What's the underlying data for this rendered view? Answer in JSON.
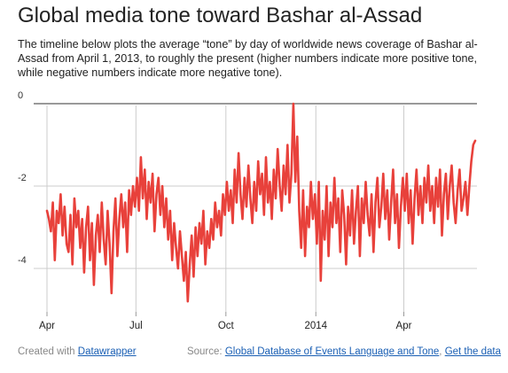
{
  "title": "Global media tone toward Bashar al-Assad",
  "description": "The timeline below plots the average “tone” by day of worldwide news coverage of Bashar al-Assad from April 1, 2013, to roughly the present (higher numbers indicate more positive tone, while negative numbers indicate more negative tone).",
  "footer": {
    "created_prefix": "Created with",
    "created_link": "Datawrapper",
    "source_prefix": "Source:",
    "source_link": "Global Database of Events Language and Tone",
    "separator": ",",
    "data_link": "Get the data"
  },
  "colors": {
    "line": "#e8413b",
    "grid": "#cccccc",
    "zero_line": "#333333"
  },
  "chart_data": {
    "type": "line",
    "title": "Global media tone toward Bashar al-Assad",
    "xlabel": "",
    "ylabel": "",
    "x_start": "2013-04-01",
    "x_end": "2014-06-13",
    "x_ticks": [
      {
        "date": "2013-04-01",
        "label": "Apr"
      },
      {
        "date": "2013-07-01",
        "label": "Jul"
      },
      {
        "date": "2013-10-01",
        "label": "Oct"
      },
      {
        "date": "2014-01-01",
        "label": "2014"
      },
      {
        "date": "2014-04-01",
        "label": "Apr"
      }
    ],
    "y_ticks": [
      0,
      -2,
      -4
    ],
    "ylim": [
      -5,
      0
    ],
    "grid": true,
    "series": [
      {
        "points": [
          [
            "2013-04-01",
            -2.6
          ],
          [
            "2013-04-03",
            -2.8
          ],
          [
            "2013-04-05",
            -3.1
          ],
          [
            "2013-04-07",
            -2.4
          ],
          [
            "2013-04-09",
            -3.8
          ],
          [
            "2013-04-11",
            -2.6
          ],
          [
            "2013-04-13",
            -2.9
          ],
          [
            "2013-04-15",
            -2.2
          ],
          [
            "2013-04-17",
            -3.2
          ],
          [
            "2013-04-19",
            -2.5
          ],
          [
            "2013-04-21",
            -3.4
          ],
          [
            "2013-04-23",
            -3.6
          ],
          [
            "2013-04-25",
            -2.7
          ],
          [
            "2013-04-27",
            -3.9
          ],
          [
            "2013-04-29",
            -2.3
          ],
          [
            "2013-05-01",
            -3.0
          ],
          [
            "2013-05-03",
            -2.6
          ],
          [
            "2013-05-05",
            -3.5
          ],
          [
            "2013-05-07",
            -2.8
          ],
          [
            "2013-05-09",
            -4.1
          ],
          [
            "2013-05-11",
            -3.0
          ],
          [
            "2013-05-13",
            -2.5
          ],
          [
            "2013-05-15",
            -3.8
          ],
          [
            "2013-05-17",
            -2.9
          ],
          [
            "2013-05-19",
            -4.4
          ],
          [
            "2013-05-21",
            -3.2
          ],
          [
            "2013-05-23",
            -2.7
          ],
          [
            "2013-05-25",
            -3.6
          ],
          [
            "2013-05-27",
            -2.4
          ],
          [
            "2013-05-29",
            -3.3
          ],
          [
            "2013-05-31",
            -3.9
          ],
          [
            "2013-06-02",
            -2.6
          ],
          [
            "2013-06-04",
            -3.4
          ],
          [
            "2013-06-06",
            -4.6
          ],
          [
            "2013-06-08",
            -3.1
          ],
          [
            "2013-06-10",
            -2.3
          ],
          [
            "2013-06-12",
            -3.7
          ],
          [
            "2013-06-14",
            -2.8
          ],
          [
            "2013-06-16",
            -2.2
          ],
          [
            "2013-06-18",
            -3.0
          ],
          [
            "2013-06-20",
            -2.4
          ],
          [
            "2013-06-22",
            -3.6
          ],
          [
            "2013-06-24",
            -2.1
          ],
          [
            "2013-06-26",
            -2.7
          ],
          [
            "2013-06-28",
            -2.0
          ],
          [
            "2013-06-30",
            -2.5
          ],
          [
            "2013-07-02",
            -1.8
          ],
          [
            "2013-07-04",
            -2.6
          ],
          [
            "2013-07-06",
            -1.3
          ],
          [
            "2013-07-08",
            -2.3
          ],
          [
            "2013-07-10",
            -1.6
          ],
          [
            "2013-07-12",
            -2.8
          ],
          [
            "2013-07-14",
            -1.9
          ],
          [
            "2013-07-16",
            -2.4
          ],
          [
            "2013-07-18",
            -1.7
          ],
          [
            "2013-07-20",
            -3.1
          ],
          [
            "2013-07-22",
            -2.2
          ],
          [
            "2013-07-24",
            -1.8
          ],
          [
            "2013-07-26",
            -2.7
          ],
          [
            "2013-07-28",
            -2.0
          ],
          [
            "2013-07-30",
            -3.0
          ],
          [
            "2013-08-01",
            -2.3
          ],
          [
            "2013-08-03",
            -3.3
          ],
          [
            "2013-08-05",
            -2.6
          ],
          [
            "2013-08-07",
            -3.8
          ],
          [
            "2013-08-09",
            -2.9
          ],
          [
            "2013-08-11",
            -3.5
          ],
          [
            "2013-08-13",
            -4.0
          ],
          [
            "2013-08-15",
            -3.1
          ],
          [
            "2013-08-17",
            -3.7
          ],
          [
            "2013-08-19",
            -4.3
          ],
          [
            "2013-08-21",
            -3.6
          ],
          [
            "2013-08-23",
            -4.8
          ],
          [
            "2013-08-25",
            -3.9
          ],
          [
            "2013-08-27",
            -3.2
          ],
          [
            "2013-08-29",
            -4.2
          ],
          [
            "2013-08-31",
            -3.0
          ],
          [
            "2013-09-02",
            -3.7
          ],
          [
            "2013-09-04",
            -2.9
          ],
          [
            "2013-09-06",
            -3.4
          ],
          [
            "2013-09-08",
            -2.6
          ],
          [
            "2013-09-10",
            -3.9
          ],
          [
            "2013-09-12",
            -3.1
          ],
          [
            "2013-09-14",
            -3.5
          ],
          [
            "2013-09-16",
            -2.8
          ],
          [
            "2013-09-18",
            -3.3
          ],
          [
            "2013-09-20",
            -2.4
          ],
          [
            "2013-09-22",
            -3.0
          ],
          [
            "2013-09-24",
            -2.6
          ],
          [
            "2013-09-26",
            -3.2
          ],
          [
            "2013-09-28",
            -2.2
          ],
          [
            "2013-09-30",
            -2.7
          ],
          [
            "2013-10-02",
            -1.9
          ],
          [
            "2013-10-04",
            -2.6
          ],
          [
            "2013-10-06",
            -2.1
          ],
          [
            "2013-10-08",
            -2.9
          ],
          [
            "2013-10-10",
            -1.6
          ],
          [
            "2013-10-12",
            -2.4
          ],
          [
            "2013-10-14",
            -1.2
          ],
          [
            "2013-10-16",
            -2.2
          ],
          [
            "2013-10-18",
            -2.8
          ],
          [
            "2013-10-20",
            -1.8
          ],
          [
            "2013-10-22",
            -2.5
          ],
          [
            "2013-10-24",
            -1.5
          ],
          [
            "2013-10-26",
            -2.3
          ],
          [
            "2013-10-28",
            -2.9
          ],
          [
            "2013-10-30",
            -1.9
          ],
          [
            "2013-11-01",
            -2.6
          ],
          [
            "2013-11-03",
            -1.4
          ],
          [
            "2013-11-05",
            -2.2
          ],
          [
            "2013-11-07",
            -1.7
          ],
          [
            "2013-11-09",
            -2.7
          ],
          [
            "2013-11-11",
            -1.3
          ],
          [
            "2013-11-13",
            -2.4
          ],
          [
            "2013-11-15",
            -1.9
          ],
          [
            "2013-11-17",
            -2.8
          ],
          [
            "2013-11-19",
            -1.6
          ],
          [
            "2013-11-21",
            -2.3
          ],
          [
            "2013-11-23",
            -1.1
          ],
          [
            "2013-11-25",
            -2.0
          ],
          [
            "2013-11-27",
            -2.6
          ],
          [
            "2013-11-29",
            -1.5
          ],
          [
            "2013-12-01",
            -2.2
          ],
          [
            "2013-12-03",
            -1.0
          ],
          [
            "2013-12-05",
            -2.4
          ],
          [
            "2013-12-07",
            -1.7
          ],
          [
            "2013-12-09",
            0.0
          ],
          [
            "2013-12-11",
            -1.9
          ],
          [
            "2013-12-13",
            -0.8
          ],
          [
            "2013-12-15",
            -2.6
          ],
          [
            "2013-12-17",
            -3.5
          ],
          [
            "2013-12-19",
            -2.1
          ],
          [
            "2013-12-21",
            -3.7
          ],
          [
            "2013-12-23",
            -2.5
          ],
          [
            "2013-12-25",
            -3.0
          ],
          [
            "2013-12-27",
            -1.9
          ],
          [
            "2013-12-29",
            -2.8
          ],
          [
            "2013-12-31",
            -2.2
          ],
          [
            "2014-01-02",
            -3.4
          ],
          [
            "2014-01-04",
            -1.9
          ],
          [
            "2014-01-06",
            -4.3
          ],
          [
            "2014-01-08",
            -2.6
          ],
          [
            "2014-01-10",
            -3.3
          ],
          [
            "2014-01-12",
            -2.0
          ],
          [
            "2014-01-14",
            -3.7
          ],
          [
            "2014-01-16",
            -2.4
          ],
          [
            "2014-01-18",
            -3.0
          ],
          [
            "2014-01-20",
            -1.8
          ],
          [
            "2014-01-22",
            -2.9
          ],
          [
            "2014-01-24",
            -2.3
          ],
          [
            "2014-01-26",
            -3.6
          ],
          [
            "2014-01-28",
            -2.1
          ],
          [
            "2014-01-30",
            -2.7
          ],
          [
            "2014-02-01",
            -3.9
          ],
          [
            "2014-02-03",
            -2.5
          ],
          [
            "2014-02-05",
            -3.2
          ],
          [
            "2014-02-07",
            -2.1
          ],
          [
            "2014-02-09",
            -3.4
          ],
          [
            "2014-02-11",
            -2.6
          ],
          [
            "2014-02-13",
            -2.0
          ],
          [
            "2014-02-15",
            -3.7
          ],
          [
            "2014-02-17",
            -2.3
          ],
          [
            "2014-02-19",
            -2.9
          ],
          [
            "2014-02-21",
            -1.9
          ],
          [
            "2014-02-23",
            -2.7
          ],
          [
            "2014-02-25",
            -3.2
          ],
          [
            "2014-02-27",
            -2.2
          ],
          [
            "2014-03-01",
            -3.6
          ],
          [
            "2014-03-03",
            -2.4
          ],
          [
            "2014-03-05",
            -1.8
          ],
          [
            "2014-03-07",
            -3.0
          ],
          [
            "2014-03-09",
            -2.5
          ],
          [
            "2014-03-11",
            -1.7
          ],
          [
            "2014-03-13",
            -2.8
          ],
          [
            "2014-03-15",
            -2.1
          ],
          [
            "2014-03-17",
            -3.3
          ],
          [
            "2014-03-19",
            -2.4
          ],
          [
            "2014-03-21",
            -1.6
          ],
          [
            "2014-03-23",
            -2.9
          ],
          [
            "2014-03-25",
            -2.2
          ],
          [
            "2014-03-27",
            -3.5
          ],
          [
            "2014-03-29",
            -2.5
          ],
          [
            "2014-03-31",
            -1.8
          ],
          [
            "2014-04-02",
            -2.6
          ],
          [
            "2014-04-04",
            -1.7
          ],
          [
            "2014-04-06",
            -2.9
          ],
          [
            "2014-04-08",
            -2.1
          ],
          [
            "2014-04-10",
            -3.4
          ],
          [
            "2014-04-12",
            -2.3
          ],
          [
            "2014-04-14",
            -1.6
          ],
          [
            "2014-04-16",
            -2.7
          ],
          [
            "2014-04-18",
            -2.0
          ],
          [
            "2014-04-20",
            -2.9
          ],
          [
            "2014-04-22",
            -1.8
          ],
          [
            "2014-04-24",
            -2.4
          ],
          [
            "2014-04-26",
            -1.5
          ],
          [
            "2014-04-28",
            -2.6
          ],
          [
            "2014-04-30",
            -2.0
          ],
          [
            "2014-05-02",
            -2.9
          ],
          [
            "2014-05-04",
            -1.8
          ],
          [
            "2014-05-06",
            -2.5
          ],
          [
            "2014-05-08",
            -1.6
          ],
          [
            "2014-05-10",
            -3.2
          ],
          [
            "2014-05-12",
            -2.2
          ],
          [
            "2014-05-14",
            -1.7
          ],
          [
            "2014-05-16",
            -2.8
          ],
          [
            "2014-05-18",
            -2.0
          ],
          [
            "2014-05-20",
            -1.5
          ],
          [
            "2014-05-22",
            -2.4
          ],
          [
            "2014-05-24",
            -2.9
          ],
          [
            "2014-05-26",
            -2.1
          ],
          [
            "2014-05-28",
            -1.6
          ],
          [
            "2014-05-30",
            -2.6
          ],
          [
            "2014-06-01",
            -2.3
          ],
          [
            "2014-06-03",
            -1.9
          ],
          [
            "2014-06-05",
            -2.7
          ],
          [
            "2014-06-07",
            -2.0
          ],
          [
            "2014-06-09",
            -1.4
          ],
          [
            "2014-06-11",
            -1.0
          ],
          [
            "2014-06-13",
            -0.9
          ]
        ]
      }
    ]
  }
}
